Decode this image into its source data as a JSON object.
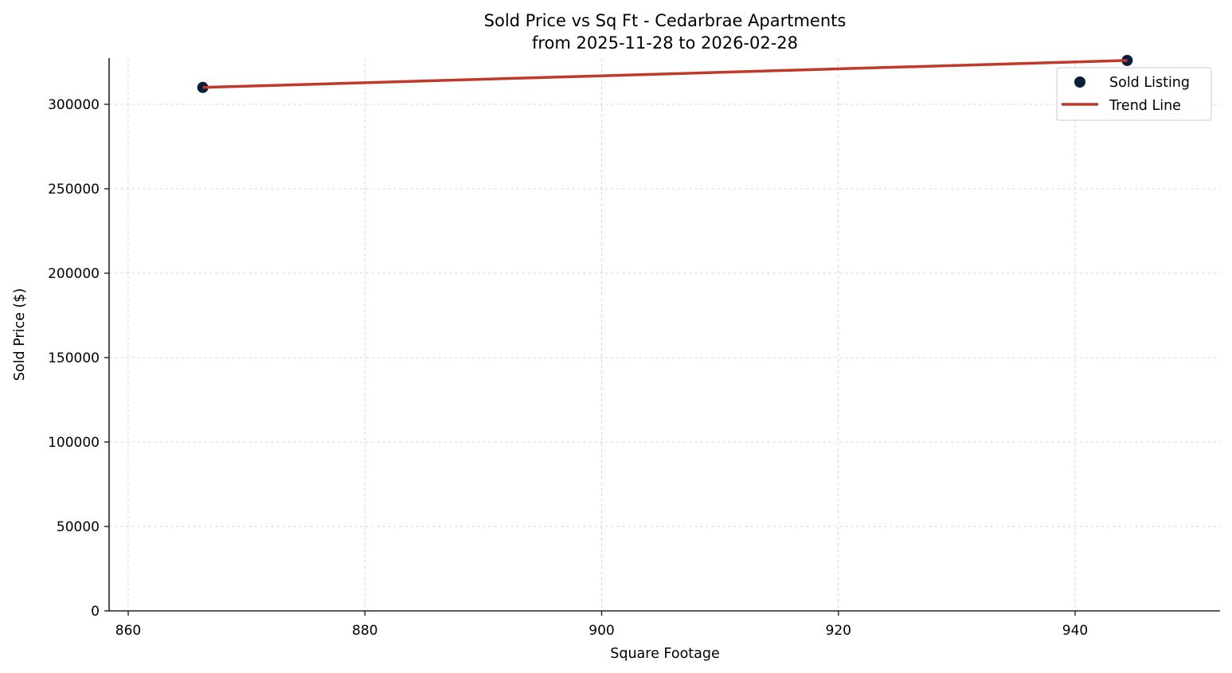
{
  "chart_data": {
    "type": "scatter",
    "title": "Sold Price vs Sq Ft - Cedarbrae Apartments",
    "subtitle": "from 2025-11-28 to 2026-02-28",
    "xlabel": "Square Footage",
    "ylabel": "Sold Price ($)",
    "xlim": [
      858.4,
      952
    ],
    "ylim": [
      0,
      328000
    ],
    "xticks": [
      860,
      880,
      900,
      920,
      940
    ],
    "yticks": [
      0,
      50000,
      100000,
      150000,
      200000,
      250000,
      300000
    ],
    "grid": true,
    "legend_position": "upper right",
    "series": [
      {
        "name": "Sold Listing",
        "kind": "scatter",
        "color": "#0b1f3a",
        "points": [
          {
            "x": 866.3,
            "y": 310000
          },
          {
            "x": 944.4,
            "y": 326000
          }
        ]
      },
      {
        "name": "Trend Line",
        "kind": "line",
        "color": "#c0392b",
        "points": [
          {
            "x": 866.3,
            "y": 310000
          },
          {
            "x": 944.4,
            "y": 326000
          }
        ]
      }
    ]
  },
  "legend": {
    "items": [
      {
        "label": "Sold Listing"
      },
      {
        "label": "Trend Line"
      }
    ]
  }
}
